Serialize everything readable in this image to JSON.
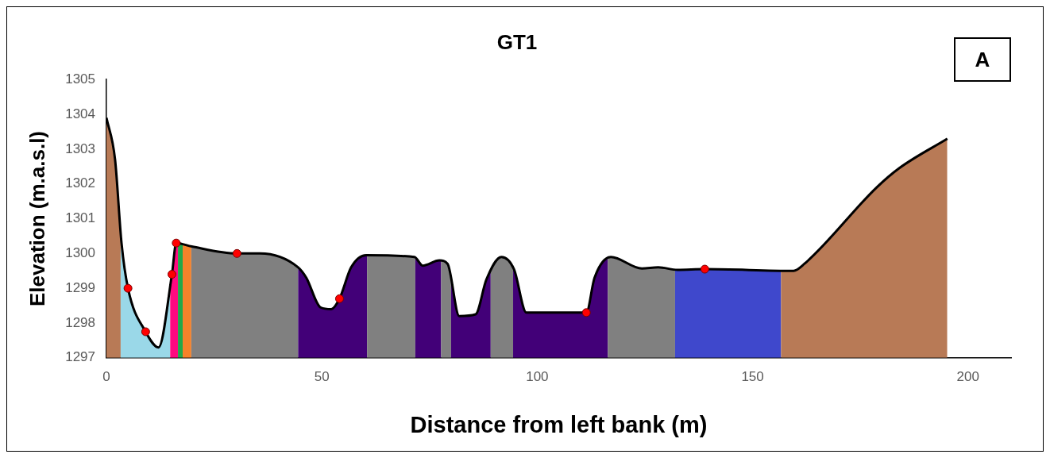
{
  "chart_data": {
    "type": "line",
    "title": "GT1",
    "xlabel": "Distance from left bank (m)",
    "ylabel": "Elevation (m.a.s.l)",
    "annotations": [
      "A"
    ],
    "xlim": [
      0,
      210
    ],
    "xticks": [
      0,
      50,
      100,
      150,
      200
    ],
    "ylim": [
      1297,
      1305
    ],
    "yticks": [
      1297,
      1298,
      1299,
      1300,
      1301,
      1302,
      1303,
      1304,
      1305
    ],
    "grid": false,
    "legend": false,
    "series": [
      {
        "color": "#000000",
        "marker": "none",
        "x": [
          0,
          2,
          3.5,
          5.0,
          9.1,
          12.1,
          15.2,
          16.2,
          19.8,
          30.3,
          35.6,
          44.5,
          46.4,
          49.7,
          52.2,
          54.1,
          56.8,
          60.3,
          71.5,
          73.4,
          77.3,
          79.2,
          81.9,
          85.7,
          88.2,
          91.7,
          94.6,
          97.5,
          111.4,
          113.3,
          117.1,
          124.3,
          128.1,
          132.6,
          138.9,
          159.5,
          162.0,
          178.8,
          184.0,
          195.2
        ],
        "values": [
          1303.9,
          1302.7,
          1300.3,
          1299.0,
          1297.75,
          1297.3,
          1299.4,
          1300.3,
          1300.2,
          1300.0,
          1300.0,
          1299.6,
          1299.3,
          1298.45,
          1298.4,
          1298.7,
          1299.6,
          1299.95,
          1299.9,
          1299.65,
          1299.8,
          1299.7,
          1298.2,
          1298.25,
          1299.25,
          1299.9,
          1299.55,
          1298.3,
          1298.3,
          1299.3,
          1299.9,
          1299.57,
          1299.6,
          1299.53,
          1299.55,
          1299.5,
          1299.7,
          1301.9,
          1302.45,
          1303.3
        ]
      },
      {
        "type": "scatter",
        "color": "#ff0000",
        "marker": "circle",
        "x": [
          5.0,
          9.1,
          15.2,
          16.2,
          30.3,
          54.1,
          111.4,
          138.9
        ],
        "values": [
          1299.0,
          1297.75,
          1299.4,
          1300.3,
          1300.0,
          1298.7,
          1298.3,
          1299.55
        ]
      }
    ],
    "bands": [
      {
        "axis": "x",
        "from": 0,
        "to": 3.3,
        "color": "#b87a56"
      },
      {
        "axis": "x",
        "from": 3.3,
        "to": 14.8,
        "color": "#9ad8e8"
      },
      {
        "axis": "x",
        "from": 14.8,
        "to": 16.6,
        "color": "#ff0a80"
      },
      {
        "axis": "x",
        "from": 16.6,
        "to": 17.7,
        "color": "#22a84a"
      },
      {
        "axis": "x",
        "from": 17.7,
        "to": 19.7,
        "color": "#f5822a"
      },
      {
        "axis": "x",
        "from": 19.7,
        "to": 44.5,
        "color": "#808080"
      },
      {
        "axis": "x",
        "from": 44.5,
        "to": 60.5,
        "color": "#420078"
      },
      {
        "axis": "x",
        "from": 60.5,
        "to": 71.7,
        "color": "#808080"
      },
      {
        "axis": "x",
        "from": 71.7,
        "to": 77.7,
        "color": "#420078"
      },
      {
        "axis": "x",
        "from": 77.7,
        "to": 80.0,
        "color": "#808080"
      },
      {
        "axis": "x",
        "from": 80.0,
        "to": 89.2,
        "color": "#420078"
      },
      {
        "axis": "x",
        "from": 89.2,
        "to": 94.4,
        "color": "#808080"
      },
      {
        "axis": "x",
        "from": 94.4,
        "to": 116.4,
        "color": "#420078"
      },
      {
        "axis": "x",
        "from": 116.4,
        "to": 132.0,
        "color": "#808080"
      },
      {
        "axis": "x",
        "from": 132.0,
        "to": 156.6,
        "color": "#3f48cc"
      },
      {
        "axis": "x",
        "from": 156.6,
        "to": 195.2,
        "color": "#b87a56"
      }
    ]
  }
}
